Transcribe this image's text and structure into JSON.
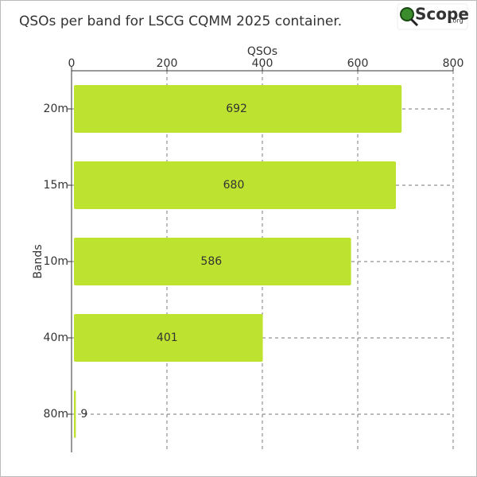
{
  "logo": "Scope",
  "logo_suffix": ".org",
  "chart_data": {
    "type": "barh",
    "title": "QSOs per band for LSCG CQMM 2025 container.",
    "x_label": "QSOs",
    "y_label": "Bands",
    "categories": [
      "20m",
      "15m",
      "10m",
      "40m",
      "80m"
    ],
    "values": [
      692,
      680,
      586,
      401,
      9
    ],
    "color": "#bde22f",
    "xlim": [
      0,
      800
    ],
    "xticks": [
      0,
      200,
      400,
      600,
      800
    ],
    "grid": true
  }
}
